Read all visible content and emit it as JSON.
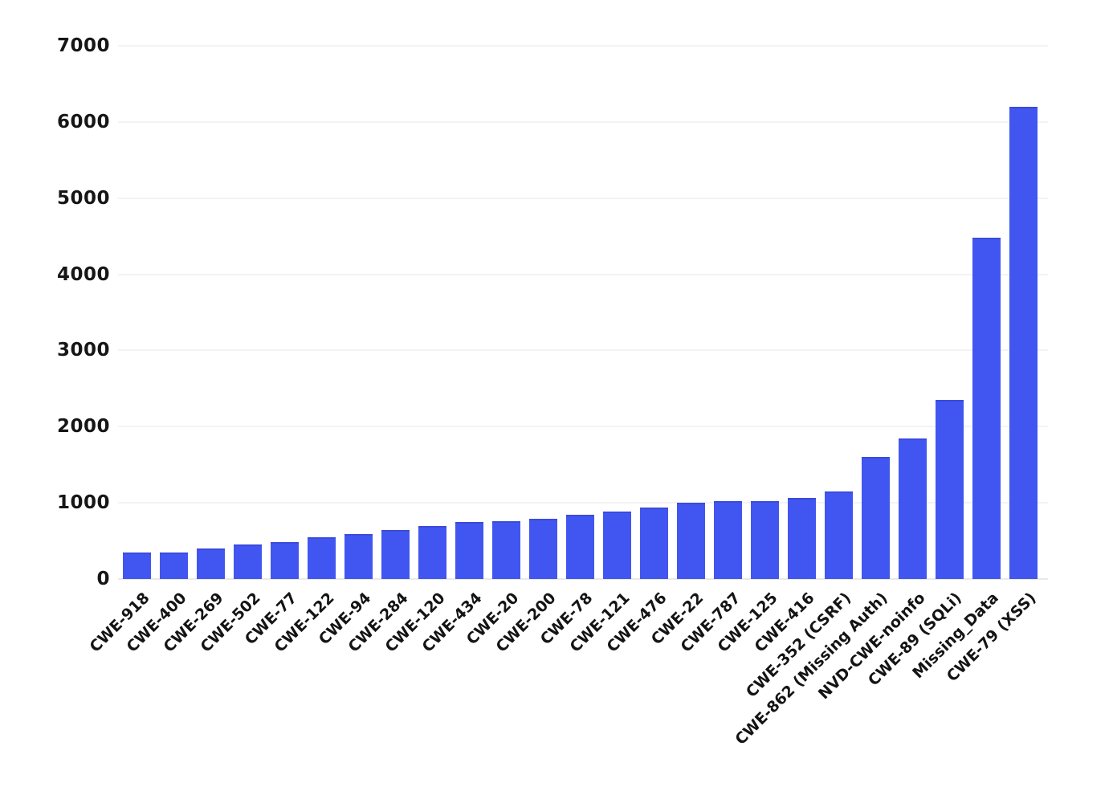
{
  "chart": {
    "background_color": "#ffffff",
    "bar_color": "#4156f0",
    "bar_edge_color": "#3b4bdb",
    "grid_color": "#f3f3f3",
    "baseline_color": "#e9e9e9",
    "text_color": "#141414"
  },
  "chart_data": {
    "type": "bar",
    "title": "",
    "xlabel": "",
    "ylabel": "",
    "categories": [
      "CWE-918",
      "CWE-400",
      "CWE-269",
      "CWE-502",
      "CWE-77",
      "CWE-122",
      "CWE-94",
      "CWE-284",
      "CWE-120",
      "CWE-434",
      "CWE-20",
      "CWE-200",
      "CWE-78",
      "CWE-121",
      "CWE-476",
      "CWE-22",
      "CWE-787",
      "CWE-125",
      "CWE-416",
      "CWE-352 (CSRF)",
      "CWE-862 (Missing Auth)",
      "NVD-CWE-noinfo",
      "CWE-89 (SQLi)",
      "Missing_Data",
      "CWE-79 (XSS)"
    ],
    "values": [
      350,
      350,
      400,
      450,
      490,
      545,
      595,
      645,
      695,
      750,
      755,
      790,
      845,
      890,
      935,
      1000,
      1020,
      1020,
      1060,
      1145,
      1600,
      1845,
      2350,
      4480,
      6200
    ],
    "ylim": [
      0,
      7000
    ],
    "yticks": [
      0,
      1000,
      2000,
      3000,
      4000,
      5000,
      6000,
      7000
    ],
    "grid": true,
    "legend_position": "none",
    "x_tick_rotation_deg": 45
  }
}
